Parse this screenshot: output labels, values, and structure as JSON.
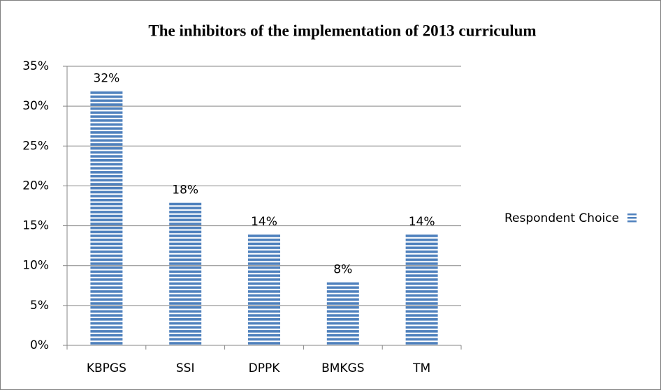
{
  "chart_data": {
    "type": "bar",
    "title": "The inhibitors of the implementation of 2013 curriculum",
    "categories": [
      "KBPGS",
      "SSI",
      "DPPK",
      "BMKGS",
      "TM"
    ],
    "series": [
      {
        "name": "Respondent Choice",
        "color": "#4f81bd",
        "values": [
          32,
          18,
          14,
          8,
          14
        ],
        "value_labels": [
          "32%",
          "18%",
          "14%",
          "8%",
          "14%"
        ]
      }
    ],
    "ylim": [
      0,
      35
    ],
    "yticks": [
      {
        "value": 0,
        "label": "0%"
      },
      {
        "value": 5,
        "label": "5%"
      },
      {
        "value": 10,
        "label": "10%"
      },
      {
        "value": 15,
        "label": "15%"
      },
      {
        "value": 20,
        "label": "20%"
      },
      {
        "value": 25,
        "label": "25%"
      },
      {
        "value": 30,
        "label": "30%"
      },
      {
        "value": 35,
        "label": "35%"
      }
    ],
    "grid": true,
    "legend": "right"
  }
}
